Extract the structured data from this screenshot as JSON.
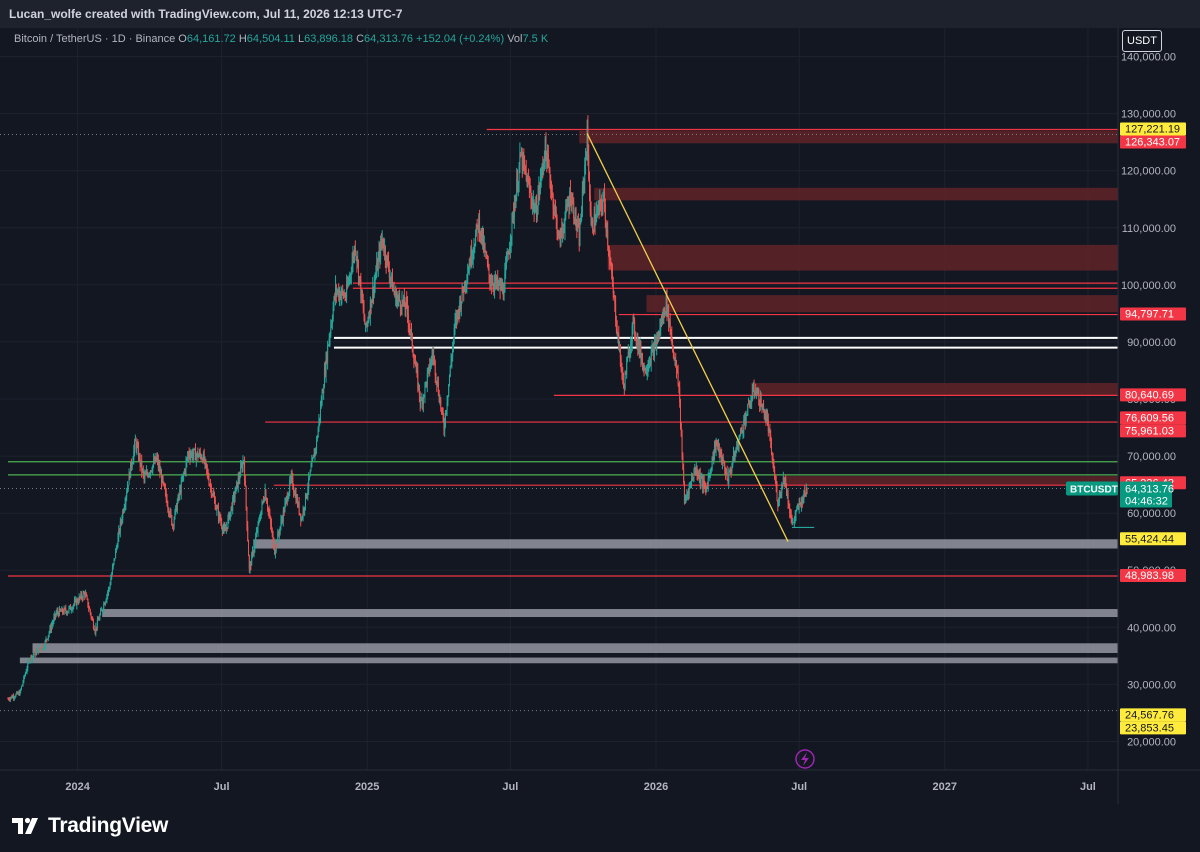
{
  "header": {
    "caption": "Lucan_wolfe created with TradingView.com, Jul 11, 2026 12:13 UTC-7"
  },
  "symbol_row": {
    "symbol": "Bitcoin / TetherUS · 1D · Binance",
    "o_label": "O",
    "o": "64,161.72",
    "h_label": "H",
    "h": "64,504.11",
    "l_label": "L",
    "l": "63,896.18",
    "c_label": "C",
    "c": "64,313.76",
    "change": "+152.04 (+0.24%)",
    "vol_label": "Vol",
    "vol": "7.5 K"
  },
  "currency": "USDT",
  "footer": {
    "logo_text": "TradingView"
  },
  "colors": {
    "background": "#131722",
    "up": "#26a69a",
    "down": "#ef5350",
    "resistance_zone": "#5c2228",
    "resistance_line": "#f23645",
    "support_zone": "#9598a1",
    "green_line": "#4caf50",
    "trendline": "#f2d04b",
    "price_tag_yellow": "#ffeb3b",
    "price_tag_red": "#f23645",
    "price_tag_green": "#089981"
  },
  "icons": [
    "tradingview-logo-icon",
    "lightning-icon"
  ],
  "chart_data": {
    "type": "candlestick",
    "title": "Bitcoin / TetherUS · 1D · Binance",
    "grid": true,
    "legend": "none",
    "y_range": [
      15000,
      145000
    ],
    "x_range": [
      "2023-10-05",
      "2027-08-08"
    ],
    "y_ticks": [
      {
        "value": 20000,
        "label": "20,000.00"
      },
      {
        "value": 30000,
        "label": "30,000.00"
      },
      {
        "value": 40000,
        "label": "40,000.00"
      },
      {
        "value": 50000,
        "label": "50,000.00"
      },
      {
        "value": 60000,
        "label": "60,000.00"
      },
      {
        "value": 70000,
        "label": "70,000.00"
      },
      {
        "value": 80000,
        "label": "80,000.00"
      },
      {
        "value": 90000,
        "label": "90,000.00"
      },
      {
        "value": 100000,
        "label": "100,000.00"
      },
      {
        "value": 110000,
        "label": "110,000.00"
      },
      {
        "value": 120000,
        "label": "120,000.00"
      },
      {
        "value": 130000,
        "label": "130,000.00"
      },
      {
        "value": 140000,
        "label": "140,000.00"
      }
    ],
    "x_ticks": [
      {
        "date": "2024-01-01",
        "label": "2024"
      },
      {
        "date": "2024-07-01",
        "label": "Jul"
      },
      {
        "date": "2025-01-01",
        "label": "2025"
      },
      {
        "date": "2025-07-01",
        "label": "Jul"
      },
      {
        "date": "2026-01-01",
        "label": "2026"
      },
      {
        "date": "2026-07-01",
        "label": "Jul"
      },
      {
        "date": "2027-01-01",
        "label": "2027"
      },
      {
        "date": "2027-07-01",
        "label": "Jul"
      }
    ],
    "price_path": [
      {
        "date": "2023-10-05",
        "price": 27500
      },
      {
        "date": "2023-10-20",
        "price": 28500
      },
      {
        "date": "2023-11-01",
        "price": 34500
      },
      {
        "date": "2023-11-20",
        "price": 37000
      },
      {
        "date": "2023-12-05",
        "price": 42500
      },
      {
        "date": "2023-12-20",
        "price": 43000
      },
      {
        "date": "2024-01-10",
        "price": 46000
      },
      {
        "date": "2024-01-23",
        "price": 39500
      },
      {
        "date": "2024-02-10",
        "price": 47000
      },
      {
        "date": "2024-02-28",
        "price": 61000
      },
      {
        "date": "2024-03-14",
        "price": 72500
      },
      {
        "date": "2024-03-25",
        "price": 66000
      },
      {
        "date": "2024-04-10",
        "price": 69500
      },
      {
        "date": "2024-04-30",
        "price": 58000
      },
      {
        "date": "2024-05-20",
        "price": 70500
      },
      {
        "date": "2024-06-07",
        "price": 70000
      },
      {
        "date": "2024-06-24",
        "price": 61000
      },
      {
        "date": "2024-07-05",
        "price": 56500
      },
      {
        "date": "2024-07-29",
        "price": 69500
      },
      {
        "date": "2024-08-05",
        "price": 50000
      },
      {
        "date": "2024-08-25",
        "price": 64000
      },
      {
        "date": "2024-09-06",
        "price": 53500
      },
      {
        "date": "2024-09-27",
        "price": 66000
      },
      {
        "date": "2024-10-10",
        "price": 59000
      },
      {
        "date": "2024-10-29",
        "price": 72500
      },
      {
        "date": "2024-11-12",
        "price": 89000
      },
      {
        "date": "2024-11-22",
        "price": 99000
      },
      {
        "date": "2024-12-05",
        "price": 98000
      },
      {
        "date": "2024-12-17",
        "price": 107000
      },
      {
        "date": "2024-12-30",
        "price": 92000
      },
      {
        "date": "2025-01-20",
        "price": 108000
      },
      {
        "date": "2025-02-05",
        "price": 98000
      },
      {
        "date": "2025-02-20",
        "price": 96000
      },
      {
        "date": "2025-03-10",
        "price": 79000
      },
      {
        "date": "2025-03-25",
        "price": 88000
      },
      {
        "date": "2025-04-08",
        "price": 75000
      },
      {
        "date": "2025-04-22",
        "price": 93000
      },
      {
        "date": "2025-05-22",
        "price": 111000
      },
      {
        "date": "2025-06-05",
        "price": 101000
      },
      {
        "date": "2025-06-22",
        "price": 99000
      },
      {
        "date": "2025-07-14",
        "price": 122500
      },
      {
        "date": "2025-08-02",
        "price": 112500
      },
      {
        "date": "2025-08-14",
        "price": 124000
      },
      {
        "date": "2025-09-01",
        "price": 107500
      },
      {
        "date": "2025-09-15",
        "price": 116000
      },
      {
        "date": "2025-09-26",
        "price": 108000
      },
      {
        "date": "2025-10-06",
        "price": 126200
      },
      {
        "date": "2025-10-11",
        "price": 110000
      },
      {
        "date": "2025-10-27",
        "price": 115000
      },
      {
        "date": "2025-11-06",
        "price": 101000
      },
      {
        "date": "2025-11-21",
        "price": 82000
      },
      {
        "date": "2025-12-03",
        "price": 93000
      },
      {
        "date": "2025-12-18",
        "price": 85000
      },
      {
        "date": "2026-01-02",
        "price": 90000
      },
      {
        "date": "2026-01-14",
        "price": 97000
      },
      {
        "date": "2026-01-30",
        "price": 82000
      },
      {
        "date": "2026-02-06",
        "price": 62000
      },
      {
        "date": "2026-02-20",
        "price": 68000
      },
      {
        "date": "2026-03-05",
        "price": 64000
      },
      {
        "date": "2026-03-18",
        "price": 72500
      },
      {
        "date": "2026-04-02",
        "price": 66000
      },
      {
        "date": "2026-04-20",
        "price": 75000
      },
      {
        "date": "2026-05-06",
        "price": 82000
      },
      {
        "date": "2026-05-22",
        "price": 76000
      },
      {
        "date": "2026-06-04",
        "price": 62000
      },
      {
        "date": "2026-06-12",
        "price": 66500
      },
      {
        "date": "2026-06-22",
        "price": 58000
      },
      {
        "date": "2026-06-30",
        "price": 61000
      },
      {
        "date": "2026-07-11",
        "price": 64313.76
      }
    ],
    "horizontal_zones": [
      {
        "top": 127000,
        "bottom": 124800,
        "x_from": "2025-09-26",
        "color": "resistance_zone"
      },
      {
        "top": 117000,
        "bottom": 114800,
        "x_from": "2025-10-15",
        "color": "resistance_zone"
      },
      {
        "top": 107000,
        "bottom": 102500,
        "x_from": "2025-11-01",
        "color": "resistance_zone"
      },
      {
        "top": 98200,
        "bottom": 95200,
        "x_from": "2025-12-20",
        "color": "resistance_zone"
      },
      {
        "top": 82800,
        "bottom": 80600,
        "x_from": "2026-05-01",
        "color": "resistance_zone"
      },
      {
        "top": 66500,
        "bottom": 64900,
        "x_from": "2026-06-10",
        "color": "resistance_zone"
      },
      {
        "top": 55424.44,
        "bottom": 53800,
        "x_from": "2024-08-10",
        "color": "support_zone"
      },
      {
        "top": 43200,
        "bottom": 41800,
        "x_from": "2024-02-01",
        "color": "support_zone"
      },
      {
        "top": 37200,
        "bottom": 35500,
        "x_from": "2023-11-05",
        "color": "support_zone"
      },
      {
        "top": 34700,
        "bottom": 33700,
        "x_from": "2023-10-20",
        "color": "support_zone"
      }
    ],
    "horizontal_lines": [
      {
        "price": 127221.19,
        "x_from": "2025-06-01",
        "style": "red-solid"
      },
      {
        "price": 100300,
        "x_from": "2024-12-14",
        "style": "red-solid"
      },
      {
        "price": 99400,
        "x_from": "2024-12-14",
        "style": "red-solid"
      },
      {
        "price": 94797.71,
        "x_from": "2025-11-15",
        "style": "red-solid"
      },
      {
        "price": 90700,
        "x_from": "2024-11-20",
        "style": "white-solid"
      },
      {
        "price": 89000,
        "x_from": "2024-11-20",
        "style": "white-solid"
      },
      {
        "price": 80640.69,
        "x_from": "2025-08-25",
        "style": "red-solid"
      },
      {
        "price": 75961.03,
        "x_from": "2024-08-25",
        "style": "red-solid"
      },
      {
        "price": 69000,
        "x_from": "2023-10-05",
        "style": "green-solid"
      },
      {
        "price": 66700,
        "x_from": "2023-10-05",
        "style": "green-solid"
      },
      {
        "price": 64900,
        "x_from": "2024-09-05",
        "style": "red-solid"
      },
      {
        "price": 48983.98,
        "x_from": "2023-10-05",
        "style": "red-solid"
      },
      {
        "price": 57500,
        "x_from": "2026-06-22",
        "x_to": "2026-07-20",
        "style": "teal-solid"
      }
    ],
    "dotted_lines": [
      {
        "price": 126343.07
      },
      {
        "price": 64313.76
      },
      {
        "price": 25400
      }
    ],
    "trendline": {
      "from": {
        "date": "2025-10-06",
        "price": 126500
      },
      "to": {
        "date": "2026-06-17",
        "price": 55000
      }
    },
    "price_tags": [
      {
        "price": 127221.19,
        "label": "127,221.19",
        "style": "yellow"
      },
      {
        "price": 126343.07,
        "label": "126,343.07",
        "style": "red"
      },
      {
        "price": 94797.71,
        "label": "94,797.71",
        "style": "red"
      },
      {
        "price": 80640.69,
        "label": "80,640.69",
        "style": "red"
      },
      {
        "price": 76609.56,
        "label": "76,609.56",
        "style": "red"
      },
      {
        "price": 75961.03,
        "label": "75,961.03",
        "style": "red"
      },
      {
        "price": 65236.42,
        "label": "65,236.42",
        "style": "red"
      },
      {
        "price": 55424.44,
        "label": "55,424.44",
        "style": "yellow"
      },
      {
        "price": 48983.98,
        "label": "48,983.98",
        "style": "red"
      },
      {
        "price": 24567.76,
        "label": "24,567.76",
        "style": "yellow"
      },
      {
        "price": 23853.45,
        "label": "23,853.45",
        "style": "yellow"
      }
    ],
    "last_price": {
      "symbol": "BTCUSDT",
      "price": 64313.76,
      "label": "64,313.76",
      "countdown": "04:46:32"
    }
  }
}
